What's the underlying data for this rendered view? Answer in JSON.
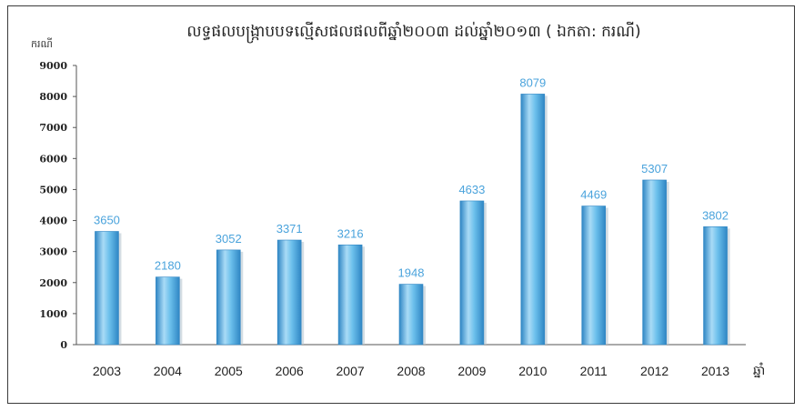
{
  "chart_data": {
    "type": "bar",
    "title": "លទ្ធផលបង្ក្រាបបទល្មើសផលផលពីឆ្នាំ២០០៣ ដល់ឆ្នាំ២០១៣ ( ឯកតា: ករណី)",
    "ylabel": "ករណី",
    "xlabel": "ឆ្នាំ",
    "categories": [
      "2003",
      "2004",
      "2005",
      "2006",
      "2007",
      "2008",
      "2009",
      "2010",
      "2011",
      "2012",
      "2013"
    ],
    "values": [
      3650,
      2180,
      3052,
      3371,
      3216,
      1948,
      4633,
      8079,
      4469,
      5307,
      3802
    ],
    "ylim": [
      0,
      9000
    ],
    "yticks": [
      0,
      1000,
      2000,
      3000,
      4000,
      5000,
      6000,
      7000,
      8000,
      9000
    ],
    "grid": false,
    "legend": "none",
    "colors": {
      "bar": "#5ab4e6",
      "bar_dark": "#2f86c4",
      "bar_light": "#a9dbf6",
      "data_label": "#4aa3dc"
    }
  }
}
